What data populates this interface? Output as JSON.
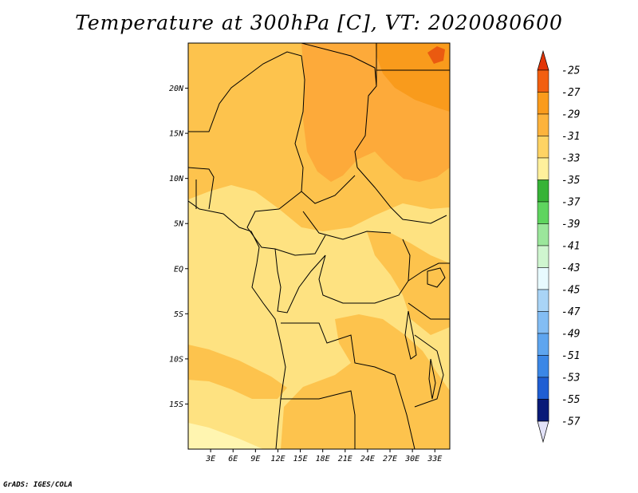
{
  "title": "Temperature at 300hPa [C], VT: 2020080600",
  "credit": "GrADS: IGES/COLA",
  "map": {
    "lon_range": [
      0,
      35
    ],
    "lat_range": [
      -20,
      25
    ],
    "lat_ticks": [
      {
        "value": 20,
        "label": "20N"
      },
      {
        "value": 15,
        "label": "15N"
      },
      {
        "value": 10,
        "label": "10N"
      },
      {
        "value": 5,
        "label": "5N"
      },
      {
        "value": 0,
        "label": "EQ"
      },
      {
        "value": -5,
        "label": "5S"
      },
      {
        "value": -10,
        "label": "10S"
      },
      {
        "value": -15,
        "label": "15S"
      }
    ],
    "lon_ticks": [
      {
        "value": 3,
        "label": "3E"
      },
      {
        "value": 6,
        "label": "6E"
      },
      {
        "value": 9,
        "label": "9E"
      },
      {
        "value": 12,
        "label": "12E"
      },
      {
        "value": 15,
        "label": "15E"
      },
      {
        "value": 18,
        "label": "18E"
      },
      {
        "value": 21,
        "label": "21E"
      },
      {
        "value": 24,
        "label": "24E"
      },
      {
        "value": 27,
        "label": "27E"
      },
      {
        "value": 30,
        "label": "30E"
      },
      {
        "value": 33,
        "label": "33E"
      }
    ],
    "colors": {
      "t_m35_m33": "#fff5b0",
      "t_m33_m31": "#fee281",
      "t_m31_m29": "#fdc34d",
      "t_m29_m27": "#fdaa3a",
      "t_m27_m25": "#f99b1c",
      "t_gt_m25": "#ea5a10",
      "border": "#000000"
    }
  },
  "colorbar": {
    "labels": [
      "-25",
      "-27",
      "-29",
      "-31",
      "-33",
      "-35",
      "-37",
      "-39",
      "-41",
      "-43",
      "-45",
      "-47",
      "-49",
      "-51",
      "-53",
      "-55",
      "-57"
    ],
    "top_color": "#e23508",
    "bottom_color": "#e2e2f8",
    "colors": [
      "#f25f10",
      "#fa9b1c",
      "#fdb33c",
      "#fed364",
      "#fff09c",
      "#37b337",
      "#5fd45f",
      "#9be69b",
      "#cff5cf",
      "#e8faff",
      "#a9d4f6",
      "#83bdf4",
      "#5ea5ef",
      "#3b87e6",
      "#1f5ed3",
      "#0e3fb2",
      "#081a78"
    ]
  }
}
